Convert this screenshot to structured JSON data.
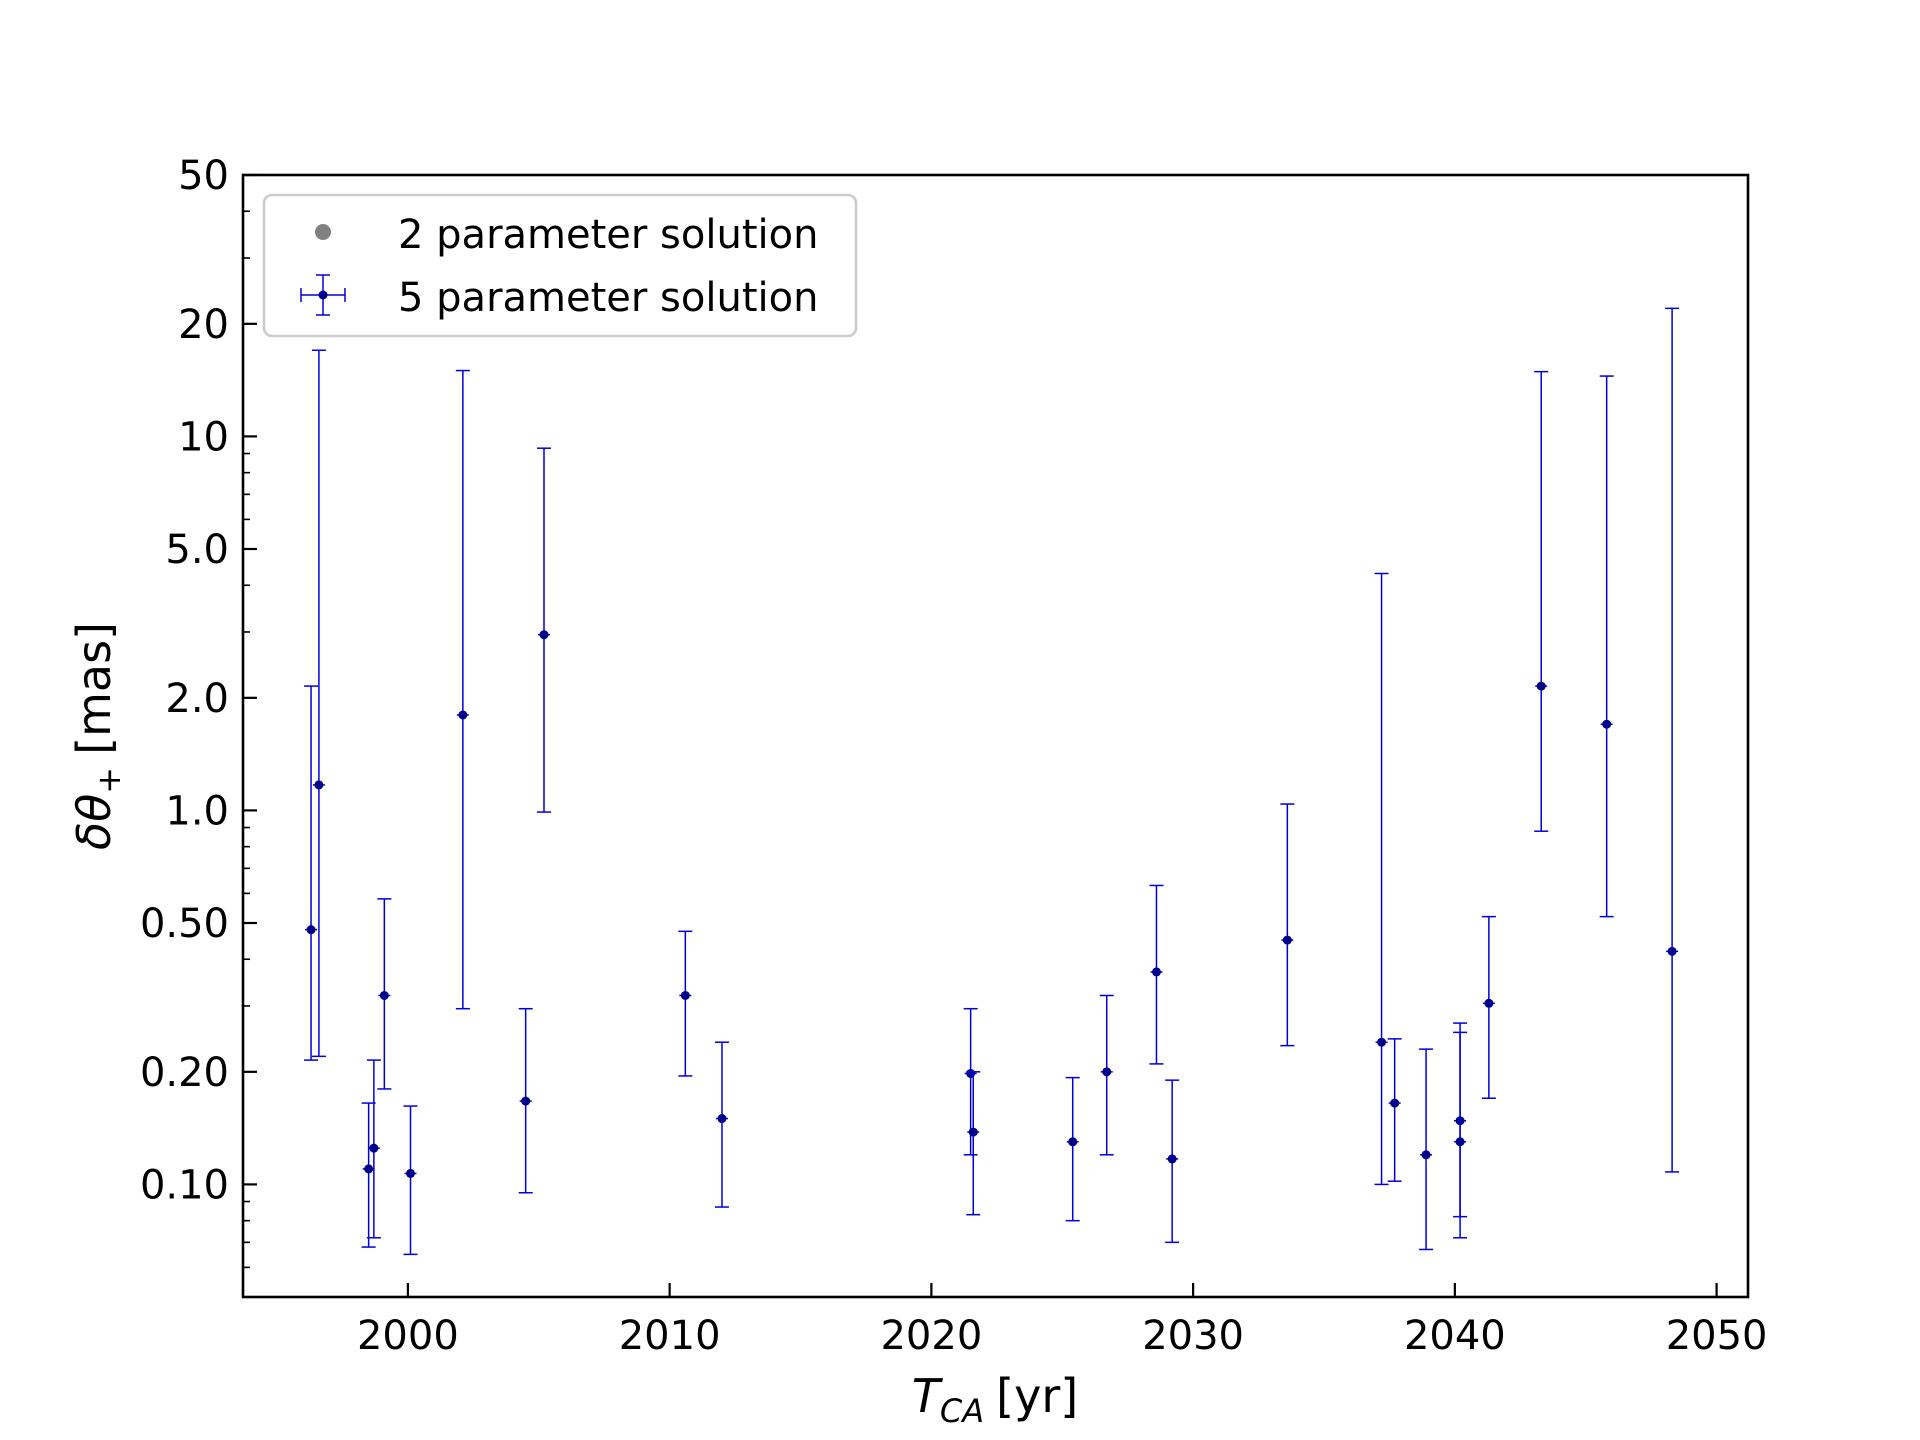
{
  "chart_data": {
    "type": "scatter",
    "xlabel": "T_CA [yr]",
    "xlabel_main": "T",
    "xlabel_sub": "CA",
    "xlabel_unit": "[yr]",
    "ylabel": "δθ+ [mas]",
    "ylabel_main": "δθ",
    "ylabel_sub": "+",
    "ylabel_unit": "[mas]",
    "xlim": [
      1993.7,
      2051.2
    ],
    "ylim": [
      0.05,
      50
    ],
    "yscale": "log",
    "x_ticks": [
      2000,
      2010,
      2020,
      2030,
      2040,
      2050
    ],
    "x_tick_labels": [
      "2000",
      "2010",
      "2020",
      "2030",
      "2040",
      "2050"
    ],
    "y_ticks": [
      0.1,
      0.2,
      0.5,
      1,
      2,
      5,
      10,
      20,
      50
    ],
    "y_tick_labels": [
      "0.10",
      "0.20",
      "0.50",
      "1.0",
      "2.0",
      "5.0",
      "10",
      "20",
      "50"
    ],
    "grid": false,
    "legend_position": "top-left",
    "legend": [
      {
        "label": "2 parameter solution",
        "color": "#808080",
        "marker": "dot"
      },
      {
        "label": "5 parameter solution",
        "color": "#0000dd",
        "marker": "errorbar"
      }
    ],
    "series": [
      {
        "name": "5 parameter solution",
        "color": "#0000dd",
        "points": [
          {
            "x": 1996.3,
            "y": 0.48,
            "ylo": 0.215,
            "yhi": 2.15
          },
          {
            "x": 1996.6,
            "y": 1.17,
            "ylo": 0.22,
            "yhi": 17.0
          },
          {
            "x": 1998.5,
            "y": 0.11,
            "ylo": 0.068,
            "yhi": 0.165
          },
          {
            "x": 1998.7,
            "y": 0.125,
            "ylo": 0.072,
            "yhi": 0.215
          },
          {
            "x": 1999.1,
            "y": 0.32,
            "ylo": 0.18,
            "yhi": 0.58
          },
          {
            "x": 2000.1,
            "y": 0.107,
            "ylo": 0.065,
            "yhi": 0.162
          },
          {
            "x": 2002.1,
            "y": 1.8,
            "ylo": 0.295,
            "yhi": 15.0
          },
          {
            "x": 2004.5,
            "y": 0.167,
            "ylo": 0.095,
            "yhi": 0.295
          },
          {
            "x": 2005.2,
            "y": 2.95,
            "ylo": 0.99,
            "yhi": 9.3
          },
          {
            "x": 2010.6,
            "y": 0.32,
            "ylo": 0.195,
            "yhi": 0.475
          },
          {
            "x": 2012.0,
            "y": 0.15,
            "ylo": 0.087,
            "yhi": 0.24
          },
          {
            "x": 2021.5,
            "y": 0.198,
            "ylo": 0.12,
            "yhi": 0.295
          },
          {
            "x": 2021.6,
            "y": 0.138,
            "ylo": 0.083,
            "yhi": 0.2
          },
          {
            "x": 2025.4,
            "y": 0.13,
            "ylo": 0.08,
            "yhi": 0.193
          },
          {
            "x": 2026.7,
            "y": 0.2,
            "ylo": 0.12,
            "yhi": 0.32
          },
          {
            "x": 2028.6,
            "y": 0.37,
            "ylo": 0.21,
            "yhi": 0.63
          },
          {
            "x": 2029.2,
            "y": 0.117,
            "ylo": 0.07,
            "yhi": 0.19
          },
          {
            "x": 2033.6,
            "y": 0.45,
            "ylo": 0.235,
            "yhi": 1.04
          },
          {
            "x": 2037.2,
            "y": 0.24,
            "ylo": 0.1,
            "yhi": 4.3
          },
          {
            "x": 2037.7,
            "y": 0.165,
            "ylo": 0.102,
            "yhi": 0.245
          },
          {
            "x": 2038.9,
            "y": 0.12,
            "ylo": 0.067,
            "yhi": 0.23
          },
          {
            "x": 2040.2,
            "y": 0.148,
            "ylo": 0.082,
            "yhi": 0.27
          },
          {
            "x": 2040.2,
            "y": 0.13,
            "ylo": 0.072,
            "yhi": 0.255
          },
          {
            "x": 2041.3,
            "y": 0.305,
            "ylo": 0.17,
            "yhi": 0.52
          },
          {
            "x": 2043.3,
            "y": 2.15,
            "ylo": 0.88,
            "yhi": 14.9
          },
          {
            "x": 2045.8,
            "y": 1.7,
            "ylo": 0.52,
            "yhi": 14.5
          },
          {
            "x": 2048.3,
            "y": 0.42,
            "ylo": 0.108,
            "yhi": 22.0
          }
        ]
      }
    ]
  }
}
